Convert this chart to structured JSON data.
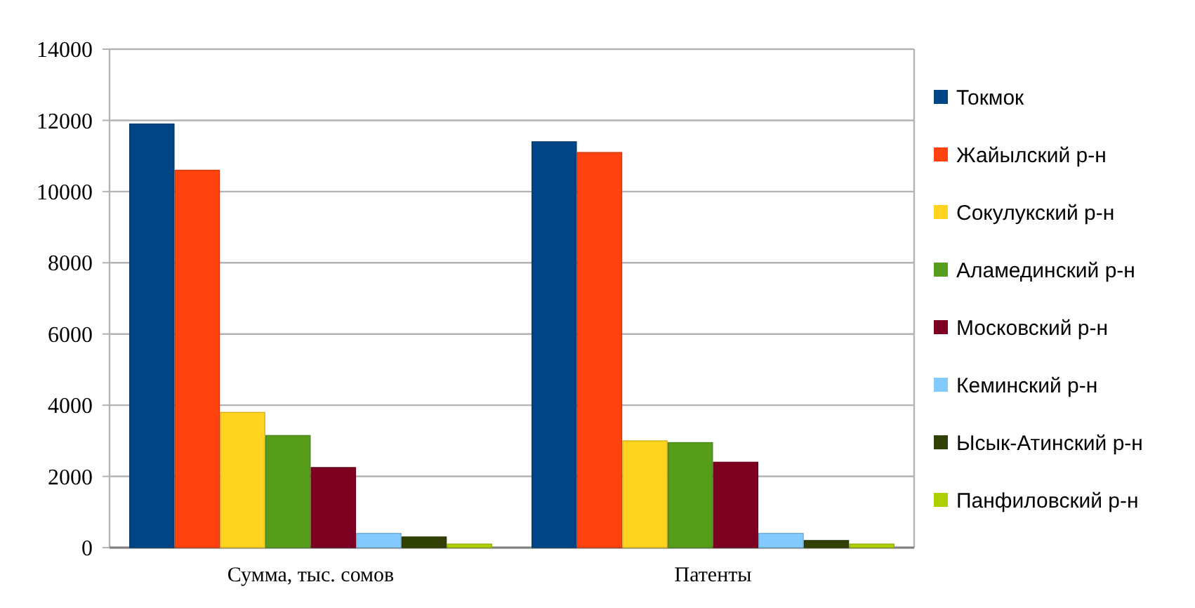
{
  "chart_data": {
    "type": "bar",
    "categories": [
      "Сумма, тыс. сомов",
      "Патенты"
    ],
    "series": [
      {
        "name": "Токмок",
        "color": "#004586",
        "values": [
          11900,
          11400
        ]
      },
      {
        "name": "Жайылский р-н",
        "color": "#ff420e",
        "values": [
          10600,
          11100
        ]
      },
      {
        "name": "Сокулукский р-н",
        "color": "#ffd320",
        "values": [
          3800,
          3000
        ]
      },
      {
        "name": "Аламединский р-н",
        "color": "#579d1c",
        "values": [
          3150,
          2950
        ]
      },
      {
        "name": "Московский р-н",
        "color": "#7e0021",
        "values": [
          2250,
          2400
        ]
      },
      {
        "name": "Кеминский р-н",
        "color": "#83caff",
        "values": [
          400,
          400
        ]
      },
      {
        "name": "Ысык-Атинский р-н",
        "color": "#314004",
        "values": [
          300,
          200
        ]
      },
      {
        "name": "Панфиловский р-н",
        "color": "#aecf00",
        "values": [
          100,
          100
        ]
      }
    ],
    "ylim": [
      0,
      14000
    ],
    "yticks": [
      0,
      2000,
      4000,
      6000,
      8000,
      10000,
      12000,
      14000
    ],
    "grid": "y",
    "legend": "right"
  }
}
